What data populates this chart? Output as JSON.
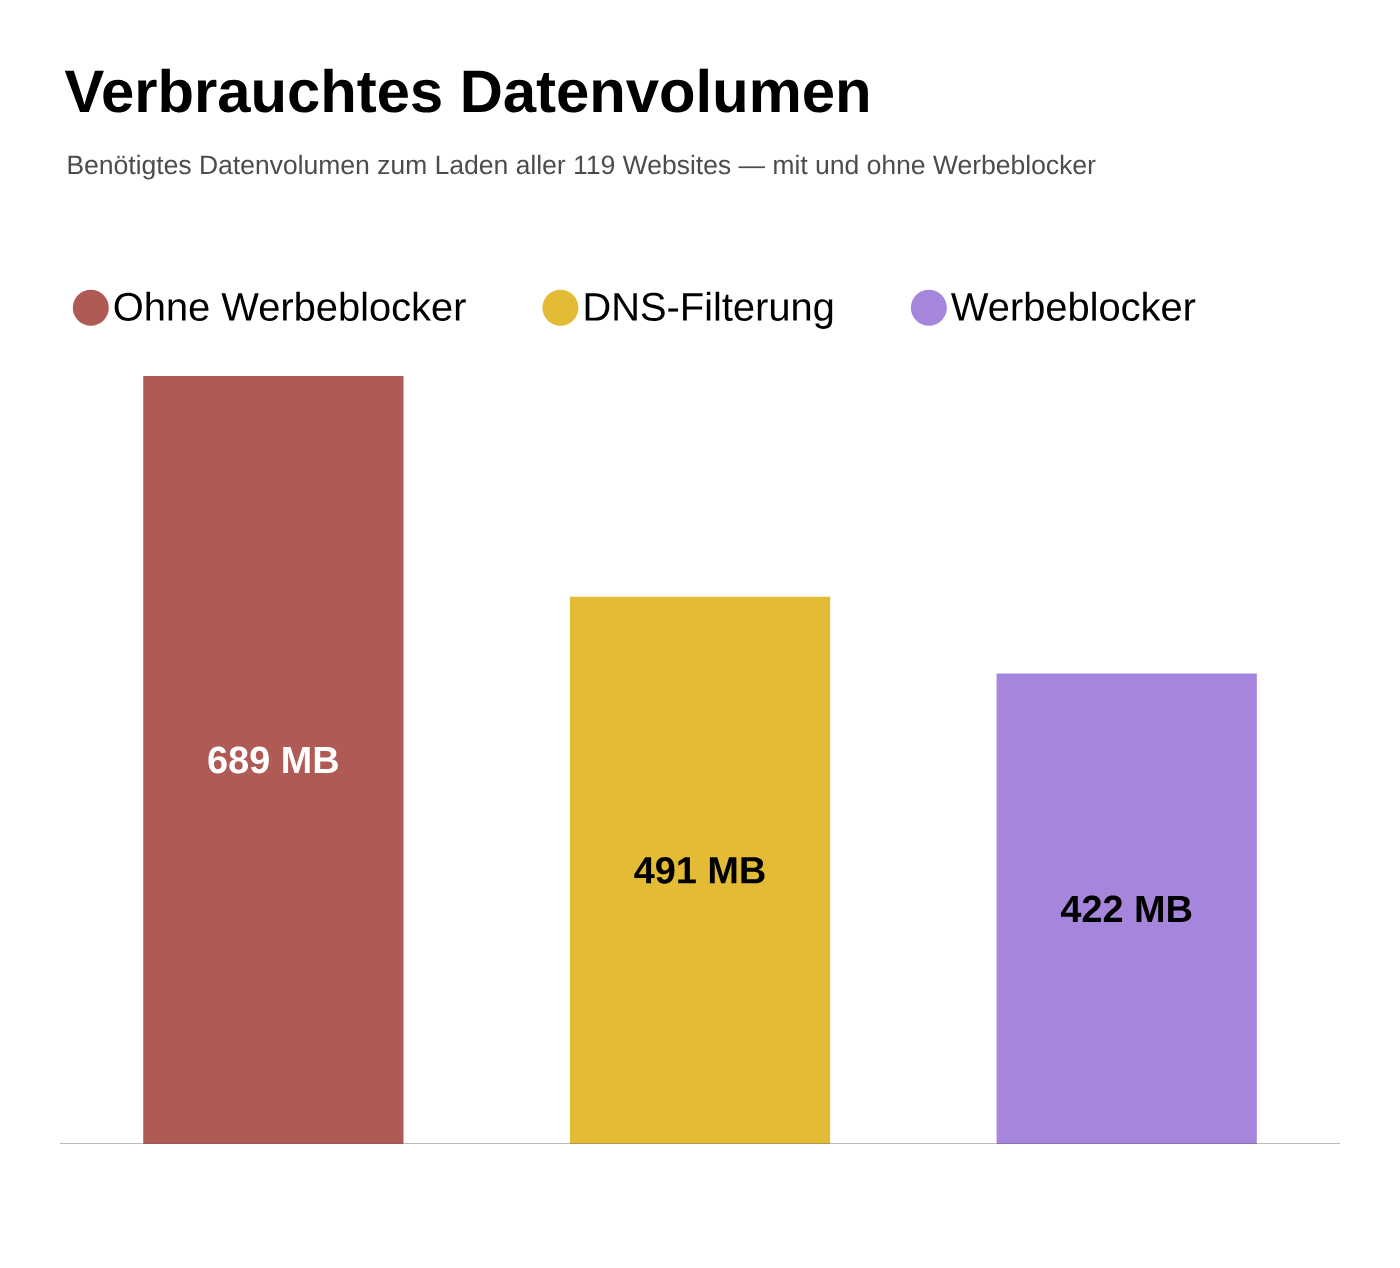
{
  "chart_data": {
    "type": "bar",
    "title": "Verbrauchtes Datenvolumen",
    "subtitle": "Benötigtes Datenvolumen zum Laden aller 119 Websites — mit und ohne Werbeblocker",
    "categories": [
      null,
      null,
      null
    ],
    "stacked": true,
    "series": [
      {
        "name": "Ohne Werbeblocker",
        "color": "#b05a56",
        "values": [
          689,
          null,
          null
        ],
        "value_labels": [
          "689 MB",
          null,
          null
        ]
      },
      {
        "name": "DNS-Filterung",
        "color": "#e3bb35",
        "values": [
          null,
          491,
          null
        ],
        "value_labels": [
          null,
          "491 MB",
          null
        ]
      },
      {
        "name": "Werbeblocker",
        "color": "#a685dc",
        "values": [
          null,
          null,
          422
        ],
        "value_labels": [
          null,
          null,
          "422 MB"
        ]
      }
    ],
    "legend": "top"
  }
}
